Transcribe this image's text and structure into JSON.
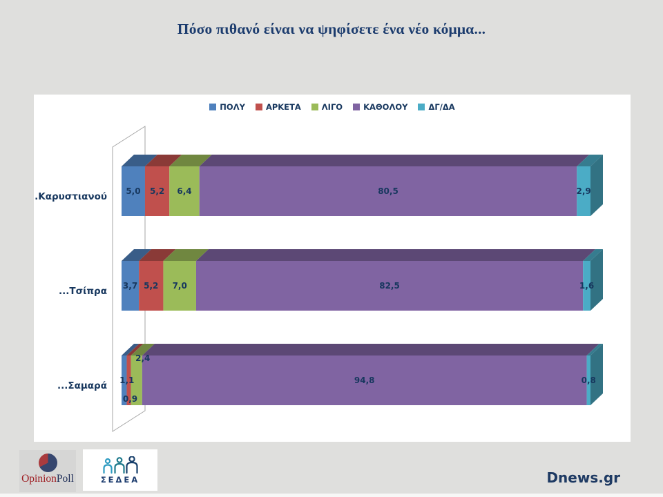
{
  "title": "Πόσο πιθανό είναι να ψηφίσετε ένα νέο κόμμα...",
  "colors": {
    "background": "#DFDFDD",
    "panel": "#FFFFFF",
    "label_navy": "#17375E",
    "title_navy": "#1C3C6E"
  },
  "chart_data": {
    "type": "bar",
    "variant": "horizontal-stacked-3d",
    "title": "Πόσο πιθανό είναι να ψηφίσετε ένα νέο κόμμα...",
    "categories": [
      "...Καρυστιανού",
      "...Τσίπρα",
      "...Σαμαρά"
    ],
    "series": [
      {
        "name": "ΠΟΛΥ",
        "color": "#4F81BD",
        "values": [
          5.0,
          3.7,
          1.1
        ]
      },
      {
        "name": "ΑΡΚΕΤΑ",
        "color": "#C0504D",
        "values": [
          5.2,
          5.2,
          0.9
        ]
      },
      {
        "name": "ΛΙΓΟ",
        "color": "#9BBB59",
        "values": [
          6.4,
          7.0,
          2.4
        ]
      },
      {
        "name": "ΚΑΘΟΛΟΥ",
        "color": "#8064A2",
        "values": [
          80.5,
          82.5,
          94.8
        ]
      },
      {
        "name": "ΔΓ/ΔΑ",
        "color": "#4BACC6",
        "values": [
          2.9,
          1.6,
          0.8
        ]
      }
    ],
    "value_labels": [
      [
        "5,0",
        "5,2",
        "6,4",
        "80,5",
        "2,9"
      ],
      [
        "3,7",
        "5,2",
        "7,0",
        "82,5",
        "1,6"
      ],
      [
        "1,1",
        "0,9",
        "2,4",
        "94,8",
        "0,8"
      ]
    ],
    "xlim": [
      0,
      100
    ],
    "legend_position": "top",
    "grid": false
  },
  "footer": {
    "opinionpoll": {
      "opinion": "Opinion",
      "poll": "Poll"
    },
    "sedea": {
      "label": "ΣΕΔΕΑ"
    },
    "site": "Dnews.gr"
  }
}
